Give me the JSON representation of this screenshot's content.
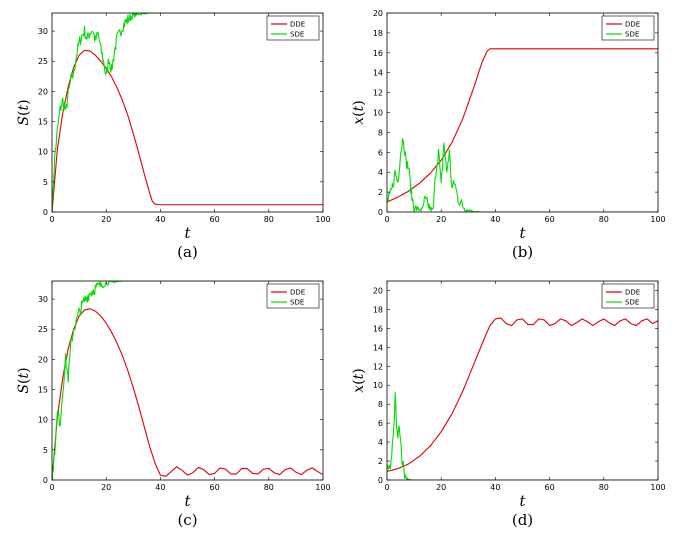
{
  "chart_data": [
    {
      "type": "line",
      "caption": "(a)",
      "xlabel": "t",
      "ylabel_fn": "S",
      "ylabel_arg": "t",
      "xlim": [
        0,
        100
      ],
      "ylim": [
        0,
        33
      ],
      "xticks": [
        0,
        20,
        40,
        60,
        80,
        100
      ],
      "yticks": [
        0,
        5,
        10,
        15,
        20,
        25,
        30
      ],
      "legend": [
        "DDE",
        "SDE"
      ],
      "legend_position": "top-right",
      "series": [
        {
          "name": "DDE",
          "color": "#e00000",
          "x": [
            0,
            2,
            4,
            6,
            8,
            10,
            12,
            14,
            16,
            18,
            20,
            22,
            24,
            26,
            28,
            30,
            32,
            34,
            36,
            37,
            38,
            40,
            50,
            60,
            70,
            80,
            90,
            100
          ],
          "y": [
            0,
            10.5,
            16.5,
            20.8,
            24,
            26,
            26.8,
            26.7,
            26,
            25,
            23.8,
            22.4,
            20.6,
            18.5,
            16,
            13,
            9.8,
            6.4,
            3.2,
            1.8,
            1.3,
            1.2,
            1.2,
            1.2,
            1.2,
            1.2,
            1.2,
            1.2
          ]
        },
        {
          "name": "SDE",
          "color": "#00dd00",
          "x": [
            0,
            1,
            2,
            3,
            4,
            5,
            6,
            7,
            8,
            9,
            10,
            11,
            12,
            13,
            14,
            15,
            16,
            17,
            18,
            19,
            20,
            21,
            22,
            23,
            24,
            25,
            26,
            27,
            28,
            29,
            30,
            32,
            34,
            36,
            38,
            40,
            45,
            50,
            60,
            70,
            80,
            90,
            100
          ],
          "y": [
            0,
            9,
            13.5,
            17,
            18.5,
            16.5,
            19.5,
            22,
            23,
            26,
            28,
            29.2,
            30,
            28.6,
            29.8,
            30.2,
            28.4,
            29.6,
            27,
            25,
            22.4,
            25.5,
            23.5,
            26.5,
            28.8,
            29.6,
            30.8,
            31.4,
            31.9,
            32.3,
            32.6,
            32.8,
            32.9,
            33,
            33,
            33,
            33,
            33,
            33,
            33,
            33,
            33,
            33
          ],
          "noisy": true
        }
      ]
    },
    {
      "type": "line",
      "caption": "(b)",
      "xlabel": "t",
      "ylabel_fn": "x",
      "ylabel_arg": "t",
      "xlim": [
        0,
        100
      ],
      "ylim": [
        0,
        20
      ],
      "xticks": [
        0,
        20,
        40,
        60,
        80,
        100
      ],
      "yticks": [
        0,
        2,
        4,
        6,
        8,
        10,
        12,
        14,
        16,
        18,
        20
      ],
      "legend": [
        "DDE",
        "SDE"
      ],
      "legend_position": "top-right",
      "series": [
        {
          "name": "DDE",
          "color": "#e00000",
          "x": [
            0,
            4,
            8,
            12,
            16,
            20,
            24,
            28,
            32,
            35,
            37,
            38,
            40,
            50,
            60,
            70,
            80,
            90,
            100
          ],
          "y": [
            1,
            1.5,
            2.1,
            2.9,
            3.9,
            5.2,
            7,
            9.4,
            12.5,
            15,
            16.2,
            16.4,
            16.4,
            16.4,
            16.4,
            16.4,
            16.4,
            16.4,
            16.4
          ]
        },
        {
          "name": "SDE",
          "color": "#00dd00",
          "x": [
            0,
            1,
            2,
            3,
            4,
            5,
            6,
            7,
            8,
            9,
            10,
            11,
            12,
            13,
            14,
            15,
            16,
            17,
            18,
            19,
            20,
            21,
            22,
            23,
            24,
            25,
            26,
            27,
            28,
            29,
            30,
            32,
            35,
            40,
            50,
            60,
            70,
            80,
            90,
            100
          ],
          "y": [
            1,
            1.5,
            2.5,
            4,
            3,
            6,
            7.6,
            5,
            4.5,
            1.8,
            0.5,
            0.3,
            0.3,
            0.2,
            1.2,
            0.8,
            0.3,
            0.2,
            4,
            6.2,
            2.5,
            7,
            4,
            6,
            2.3,
            3,
            1.5,
            1,
            0.6,
            0.3,
            0.2,
            0.05,
            0,
            0,
            0,
            0,
            0,
            0,
            0,
            0
          ],
          "noisy": true
        }
      ]
    },
    {
      "type": "line",
      "caption": "(c)",
      "xlabel": "t",
      "ylabel_fn": "S",
      "ylabel_arg": "t",
      "xlim": [
        0,
        100
      ],
      "ylim": [
        0,
        33
      ],
      "xticks": [
        0,
        20,
        40,
        60,
        80,
        100
      ],
      "yticks": [
        0,
        5,
        10,
        15,
        20,
        25,
        30
      ],
      "legend": [
        "DDE",
        "SDE"
      ],
      "legend_position": "top-right",
      "series": [
        {
          "name": "DDE",
          "color": "#e00000",
          "x": [
            0,
            2,
            4,
            6,
            8,
            10,
            12,
            14,
            16,
            18,
            20,
            22,
            24,
            26,
            28,
            30,
            32,
            34,
            36,
            38,
            40,
            42,
            44,
            46,
            48,
            50,
            52,
            54,
            56,
            58,
            60,
            62,
            64,
            66,
            68,
            70,
            72,
            74,
            76,
            78,
            80,
            82,
            84,
            86,
            88,
            90,
            92,
            94,
            96,
            98,
            100
          ],
          "y": [
            0,
            10.5,
            17,
            21.8,
            25,
            27.2,
            28.2,
            28.4,
            28,
            27.2,
            26,
            24.5,
            22.7,
            20.6,
            18.1,
            15.3,
            12.2,
            8.9,
            5.6,
            2.8,
            0.8,
            0.6,
            1.4,
            2.2,
            1.6,
            0.8,
            1.2,
            2.1,
            1.7,
            0.9,
            1.1,
            2,
            1.8,
            1,
            1,
            1.9,
            1.9,
            1.1,
            1,
            1.8,
            1.9,
            1.2,
            0.9,
            1.7,
            2,
            1.3,
            0.9,
            1.6,
            2,
            1.4,
            0.9
          ]
        },
        {
          "name": "SDE",
          "color": "#00dd00",
          "x": [
            0,
            1,
            2,
            3,
            4,
            5,
            6,
            7,
            8,
            10,
            12,
            14,
            16,
            18,
            20,
            22,
            24,
            26,
            28,
            30,
            35,
            40,
            50,
            60,
            70,
            80,
            90,
            100
          ],
          "y": [
            0,
            5,
            11,
            9.5,
            15,
            20,
            17,
            22.5,
            25,
            27.8,
            29.8,
            31,
            31.8,
            32.3,
            32.6,
            32.8,
            32.9,
            33,
            33,
            33,
            33,
            33,
            33,
            33,
            33,
            33,
            33,
            33
          ],
          "noisy": true
        }
      ]
    },
    {
      "type": "line",
      "caption": "(d)",
      "xlabel": "t",
      "ylabel_fn": "x",
      "ylabel_arg": "t",
      "xlim": [
        0,
        100
      ],
      "ylim": [
        0,
        21
      ],
      "xticks": [
        0,
        20,
        40,
        60,
        80,
        100
      ],
      "yticks": [
        0,
        2,
        4,
        6,
        8,
        10,
        12,
        14,
        16,
        18,
        20
      ],
      "legend": [
        "DDE",
        "SDE"
      ],
      "legend_position": "top-right",
      "series": [
        {
          "name": "DDE",
          "color": "#e00000",
          "x": [
            0,
            4,
            8,
            12,
            16,
            20,
            24,
            28,
            32,
            36,
            38,
            40,
            42,
            44,
            46,
            48,
            50,
            52,
            54,
            56,
            58,
            60,
            62,
            64,
            66,
            68,
            70,
            72,
            74,
            76,
            78,
            80,
            82,
            84,
            86,
            88,
            90,
            92,
            94,
            96,
            98,
            100
          ],
          "y": [
            0.9,
            1.2,
            1.7,
            2.5,
            3.6,
            5.1,
            7,
            9.4,
            12.2,
            15,
            16.3,
            17,
            17.1,
            16.5,
            16.3,
            16.9,
            17,
            16.4,
            16.4,
            17,
            16.9,
            16.3,
            16.5,
            17,
            16.8,
            16.3,
            16.6,
            17,
            16.7,
            16.3,
            16.7,
            17,
            16.6,
            16.3,
            16.8,
            17,
            16.5,
            16.3,
            16.8,
            17,
            16.5,
            16.8
          ]
        },
        {
          "name": "SDE",
          "color": "#00dd00",
          "x": [
            0,
            0.5,
            1,
            1.5,
            2,
            2.5,
            3,
            3.5,
            4,
            4.5,
            5,
            5.5,
            6,
            6.5,
            7,
            8,
            9,
            10,
            20,
            40,
            60,
            80,
            100
          ],
          "y": [
            0.9,
            1,
            1.2,
            2,
            3.5,
            5,
            8.9,
            6,
            4,
            6.3,
            4.2,
            2.5,
            1.5,
            0.6,
            0.3,
            0.1,
            0,
            0,
            0,
            0,
            0,
            0,
            0
          ],
          "noisy": true
        }
      ]
    }
  ]
}
